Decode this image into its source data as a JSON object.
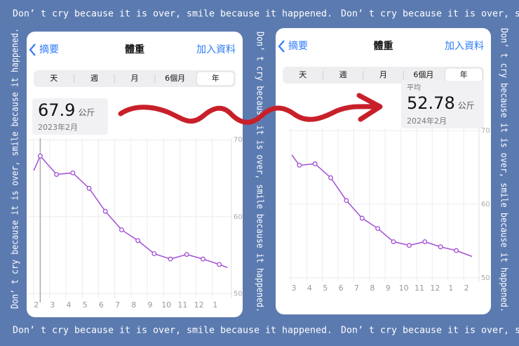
{
  "border_text": "Don’ t cry because it is over, smile because it happened.",
  "panels": [
    {
      "nav": {
        "back": "摘要",
        "title": "體重",
        "action": "加入資料"
      },
      "segments": [
        "天",
        "週",
        "月",
        "6個月",
        "年"
      ],
      "selected_segment": 4,
      "summary": {
        "value": "67.9",
        "unit": "公斤",
        "date": "2023年2月"
      },
      "chart": {
        "type": "line",
        "color": "#a24fd6",
        "x": [
          -0.15,
          0.25,
          1.25,
          2.25,
          3.25,
          4.25,
          5.25,
          6.25,
          7.25,
          8.25,
          9.25,
          10.25,
          11.25,
          11.75
        ],
        "values": [
          66.0,
          67.9,
          65.5,
          65.7,
          63.7,
          60.7,
          58.3,
          56.9,
          55.2,
          54.5,
          55.1,
          54.5,
          53.8,
          53.4
        ],
        "xlim": [
          -0.5,
          12.0
        ],
        "ylim": [
          49.4,
          70.2
        ],
        "yticks": [
          50,
          60,
          70
        ],
        "xticks": [
          {
            "value": 0,
            "label": "2"
          },
          {
            "value": 1,
            "label": "3"
          },
          {
            "value": 2,
            "label": "4"
          },
          {
            "value": 3,
            "label": "5"
          },
          {
            "value": 4,
            "label": "6"
          },
          {
            "value": 5,
            "label": "7"
          },
          {
            "value": 6,
            "label": "8"
          },
          {
            "value": 7,
            "label": "9"
          },
          {
            "value": 8,
            "label": "10"
          },
          {
            "value": 9,
            "label": "11"
          },
          {
            "value": 10,
            "label": "12"
          },
          {
            "value": 11,
            "label": "1"
          }
        ],
        "selected_x": 0.25
      }
    },
    {
      "nav": {
        "back": "摘要",
        "title": "體重",
        "action": "加入資料"
      },
      "segments": [
        "天",
        "週",
        "月",
        "6個月",
        "年"
      ],
      "selected_segment": 4,
      "summary": {
        "label": "平均",
        "value": "52.78",
        "unit": "公斤",
        "date": "2024年2月"
      },
      "chart": {
        "type": "line",
        "color": "#a24fd6",
        "x": [
          -0.13,
          0.35,
          1.35,
          2.35,
          3.35,
          4.35,
          5.35,
          6.35,
          7.35,
          8.35,
          9.35,
          10.35,
          11.35
        ],
        "values": [
          66.7,
          65.3,
          65.5,
          63.6,
          60.5,
          58.1,
          56.7,
          54.9,
          54.4,
          54.9,
          54.2,
          53.7,
          52.9
        ],
        "xlim": [
          -0.4,
          11.8
        ],
        "ylim": [
          49.5,
          70.4
        ],
        "yticks": [
          50,
          60,
          70
        ],
        "xticks": [
          {
            "value": 0,
            "label": "3"
          },
          {
            "value": 1,
            "label": "4"
          },
          {
            "value": 2,
            "label": "5"
          },
          {
            "value": 3,
            "label": "6"
          },
          {
            "value": 4,
            "label": "7"
          },
          {
            "value": 5,
            "label": "8"
          },
          {
            "value": 6,
            "label": "9"
          },
          {
            "value": 7,
            "label": "10"
          },
          {
            "value": 8,
            "label": "11"
          },
          {
            "value": 9,
            "label": "12"
          },
          {
            "value": 10,
            "label": "1"
          },
          {
            "value": 11,
            "label": "2"
          }
        ]
      }
    }
  ]
}
